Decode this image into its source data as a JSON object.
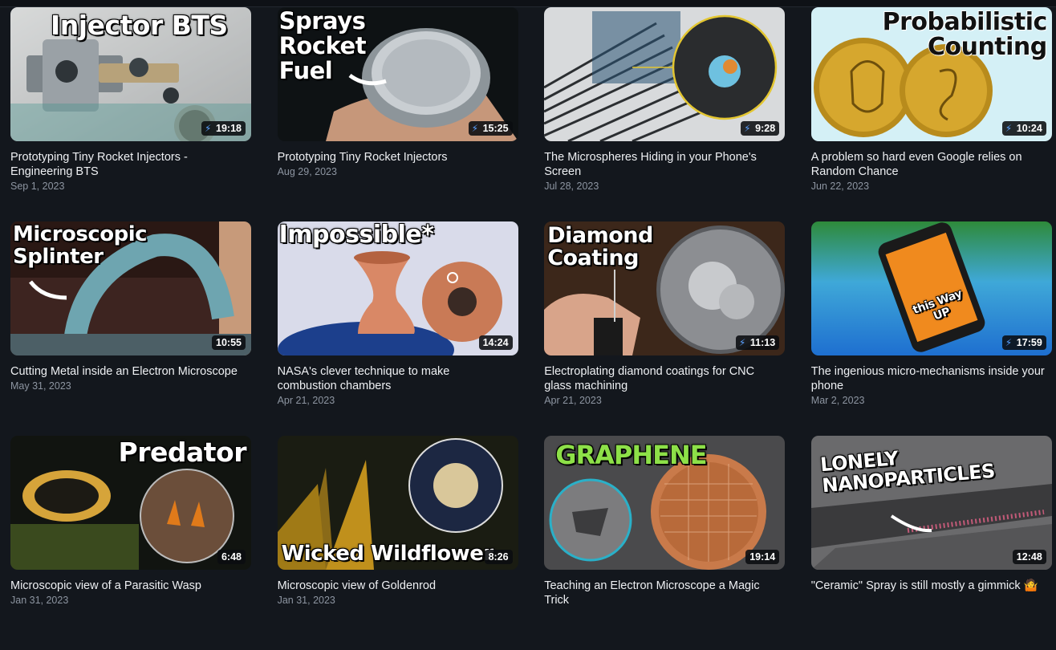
{
  "videos": [
    {
      "thumb_text": "Injector BTS",
      "duration": "19:18",
      "short": true,
      "title": "Prototyping Tiny Rocket Injectors - Engineering BTS",
      "date": "Sep 1, 2023"
    },
    {
      "thumb_text": "Sprays\nRocket\nFuel",
      "duration": "15:25",
      "short": true,
      "title": "Prototyping Tiny Rocket Injectors",
      "date": "Aug 29, 2023"
    },
    {
      "thumb_text": "",
      "duration": "9:28",
      "short": true,
      "title": "The Microspheres Hiding in your Phone's Screen",
      "date": "Jul 28, 2023"
    },
    {
      "thumb_text": "Probabilistic\nCounting",
      "duration": "10:24",
      "short": true,
      "title": "A problem so hard even Google relies on Random Chance",
      "date": "Jun 22, 2023"
    },
    {
      "thumb_text": "Microscopic\nSplinter",
      "duration": "10:55",
      "short": false,
      "title": "Cutting Metal inside an Electron Microscope",
      "date": "May 31, 2023"
    },
    {
      "thumb_text": "Impossible*",
      "duration": "14:24",
      "short": false,
      "title": "NASA's clever technique to make combustion chambers",
      "date": "Apr 21, 2023"
    },
    {
      "thumb_text": "Diamond\nCoating",
      "duration": "11:13",
      "short": true,
      "title": "Electroplating diamond coatings for CNC glass machining",
      "date": "Apr 21, 2023"
    },
    {
      "thumb_text": "this Way\nUP",
      "duration": "17:59",
      "short": true,
      "title": "The ingenious micro-mechanisms inside your phone",
      "date": "Mar 2, 2023"
    },
    {
      "thumb_text": "Predator",
      "duration": "6:48",
      "short": false,
      "title": "Microscopic view of a Parasitic Wasp",
      "date": "Jan 31, 2023"
    },
    {
      "thumb_text": "Wicked Wildflower",
      "duration": "8:26",
      "short": false,
      "title": "Microscopic view of Goldenrod",
      "date": "Jan 31, 2023"
    },
    {
      "thumb_text": "GRAPHENE",
      "duration": "19:14",
      "short": false,
      "title": "Teaching an Electron Microscope a Magic Trick",
      "date": ""
    },
    {
      "thumb_text": "LONELY\nNANOPARTICLES",
      "duration": "12:48",
      "short": false,
      "title": "\"Ceramic\" Spray is still mostly a gimmick 🤷",
      "date": ""
    }
  ],
  "colors": {
    "background": "#13171d",
    "duration_bg": "#0a0c10",
    "date_text": "#8d95a1",
    "accent_short": "#5aa0ff"
  },
  "icons": {
    "short_badge": "lightning-bolt-icon"
  }
}
